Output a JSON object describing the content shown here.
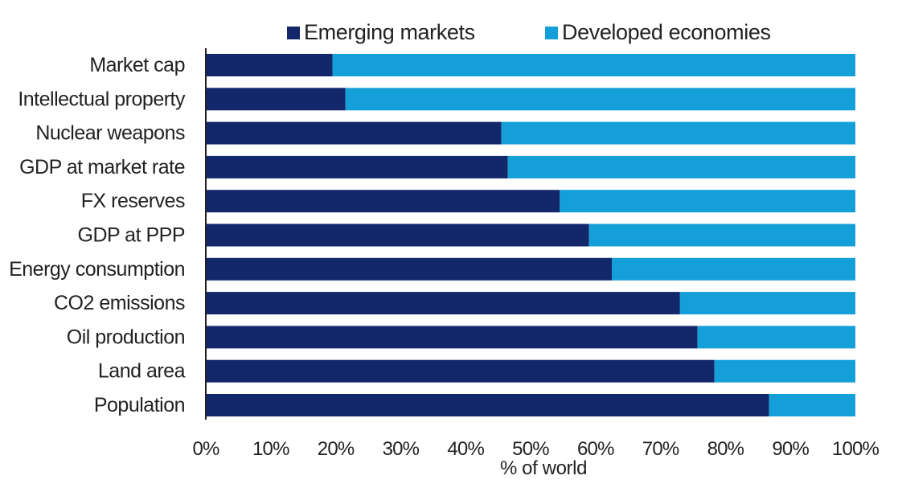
{
  "chart_data": {
    "type": "bar",
    "orientation": "horizontal",
    "stacked": true,
    "categories": [
      "Market cap",
      "Intellectual property",
      "Nuclear weapons",
      "GDP at market rate",
      "FX reserves",
      "GDP at PPP",
      "Energy consumption",
      "CO2 emissions",
      "Oil production",
      "Land area",
      "Population"
    ],
    "series": [
      {
        "name": "Emerging markets",
        "color": "#13276b",
        "values": [
          19.5,
          21.5,
          45.5,
          46.5,
          54.5,
          59,
          62.5,
          73,
          75.7,
          78.3,
          86.7
        ]
      },
      {
        "name": "Developed economies",
        "color": "#159fd9",
        "values": [
          80.5,
          78.5,
          54.5,
          53.5,
          45.5,
          41,
          37.5,
          27,
          24.3,
          21.7,
          13.3
        ]
      }
    ],
    "xlabel": "% of world",
    "ylabel": "",
    "xlim": [
      0,
      100
    ],
    "xticks": [
      "0%",
      "10%",
      "20%",
      "30%",
      "40%",
      "50%",
      "60%",
      "70%",
      "80%",
      "90%",
      "100%"
    ],
    "legend_position": "top",
    "grid": false
  }
}
